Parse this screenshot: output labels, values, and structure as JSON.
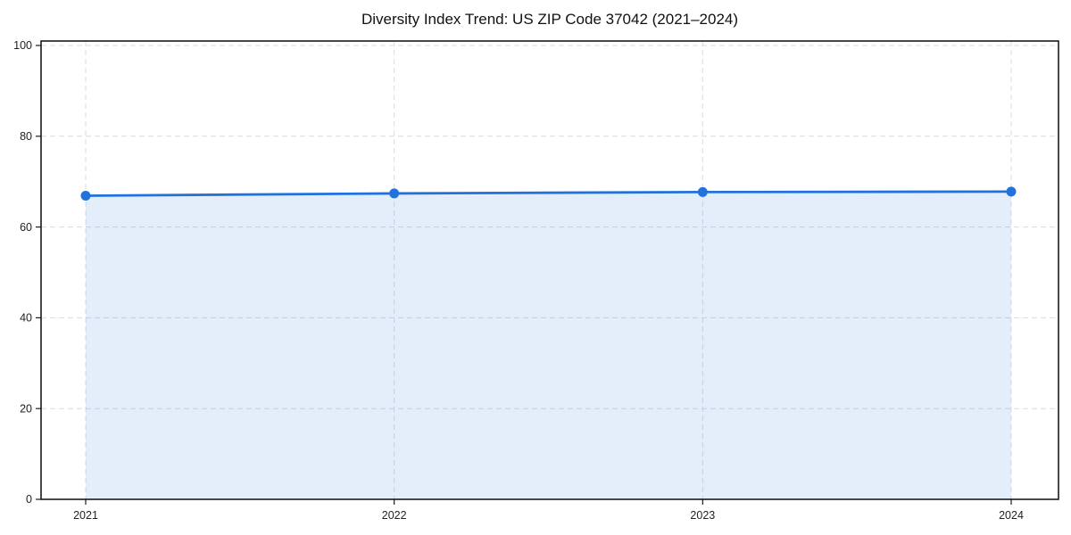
{
  "page": {
    "background": "#ffffff"
  },
  "chart_data": {
    "type": "line",
    "title": "Diversity Index Trend: US ZIP Code 37042 (2021–2024)",
    "categories": [
      "2021",
      "2022",
      "2023",
      "2024"
    ],
    "series": [
      {
        "name": "Diversity Index",
        "values": [
          66.9,
          67.4,
          67.7,
          67.8
        ]
      }
    ],
    "xlabel": "",
    "ylabel": "",
    "ylim": [
      0,
      100
    ],
    "yticks": [
      0,
      20,
      40,
      60,
      80,
      100
    ],
    "grid": true,
    "grid_style": "dashed",
    "legend_position": "none",
    "area_fill": true,
    "marker": "circle",
    "colors": {
      "line": "#2172dd",
      "marker": "#2172dd",
      "area": "#2172dd",
      "area_opacity": 0.12,
      "grid": "#dcdcdc",
      "spine": "#1a1a1a",
      "title_text": "#111111",
      "tick_text": "#222222"
    }
  }
}
